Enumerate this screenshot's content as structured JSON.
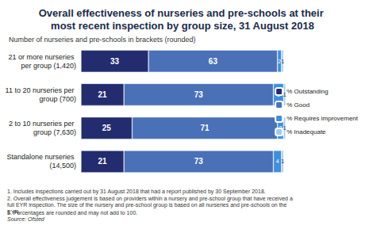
{
  "chart_data": {
    "type": "bar",
    "title": "Overall effectiveness of nurseries and pre-schools at their most recent inspection by group size, 31 August 2018",
    "subtitle": "Number of nurseries and pre-schools in brackets (rounded)",
    "categories": [
      "21 or more nurseries per group (1,420)",
      "11 to 20 nurseries per group (700)",
      "2 to 10 nurseries per group (7,630)",
      "Standalone nurseries (14,500)"
    ],
    "series": [
      {
        "name": "% Outstanding",
        "color": "#232c6e",
        "values": [
          33,
          21,
          25,
          21
        ]
      },
      {
        "name": "% Good",
        "color": "#4a70b8",
        "values": [
          63,
          73,
          71,
          73
        ]
      },
      {
        "name": "% Requires improvement",
        "color": "#3f8fdc",
        "values": [
          2,
          5,
          3,
          4
        ]
      },
      {
        "name": "% Inadequate",
        "color": "#9fcbef",
        "values": [
          1,
          1,
          1,
          1
        ]
      }
    ],
    "orientation": "horizontal",
    "stacked": true,
    "data_labels": true,
    "legend": "right",
    "grid": false,
    "tick_labels": "y",
    "xlim": [
      0,
      100
    ],
    "notes": [
      "1. Includes inspections carried out by 31 August 2018 that had a report published by 30 September 2018.",
      "2. Overall effectiveness judgement is based on providers within a nursery and pre-school group that have received a full EYR inspection. The size of the nursery and pre-school group is based on all nurseries and pre-schools on the EYR.",
      "3. Percentages are rounded and may not add to 100."
    ],
    "source": "Source: Ofsted"
  }
}
